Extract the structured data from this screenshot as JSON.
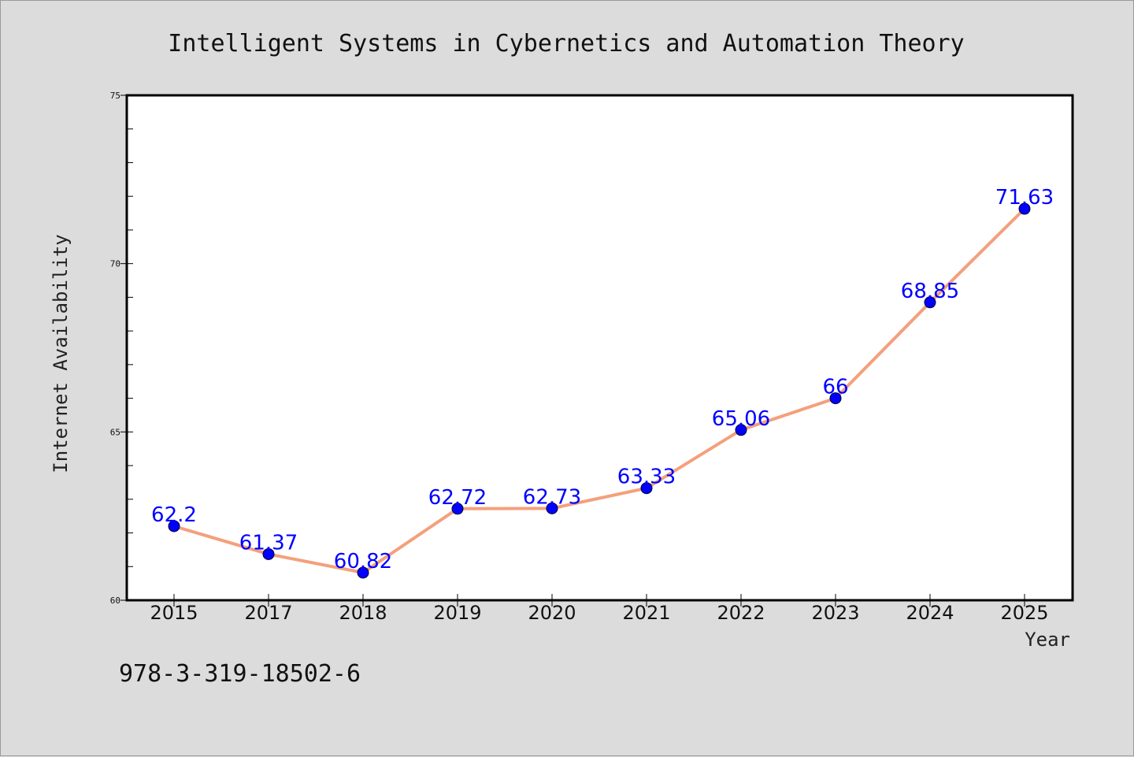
{
  "chart_data": {
    "type": "line",
    "title": "Intelligent Systems in Cybernetics and Automation Theory",
    "xlabel": "Year",
    "ylabel": "Internet Availability",
    "categories": [
      "2015",
      "2017",
      "2018",
      "2019",
      "2020",
      "2021",
      "2022",
      "2023",
      "2024",
      "2025"
    ],
    "series": [
      {
        "values": [
          62.2,
          61.37,
          60.82,
          62.72,
          62.73,
          63.33,
          65.06,
          66,
          68.85,
          71.63
        ],
        "labels": [
          "62.2",
          "61.37",
          "60.82",
          "62.72",
          "62.73",
          "63.33",
          "65.06",
          "66",
          "68.85",
          "71.63"
        ],
        "line_color": "#f4a07c",
        "marker_color": "#0000ff"
      }
    ],
    "ylim": [
      60,
      75
    ],
    "yticks": [
      "60",
      "65",
      "70",
      "75"
    ],
    "grid": false,
    "legend": "none"
  },
  "footer": {
    "isbn": "978-3-319-18502-6"
  },
  "colors": {
    "background": "#dcdcdc",
    "plot_background": "#ffffff",
    "label": "#0000ff"
  }
}
